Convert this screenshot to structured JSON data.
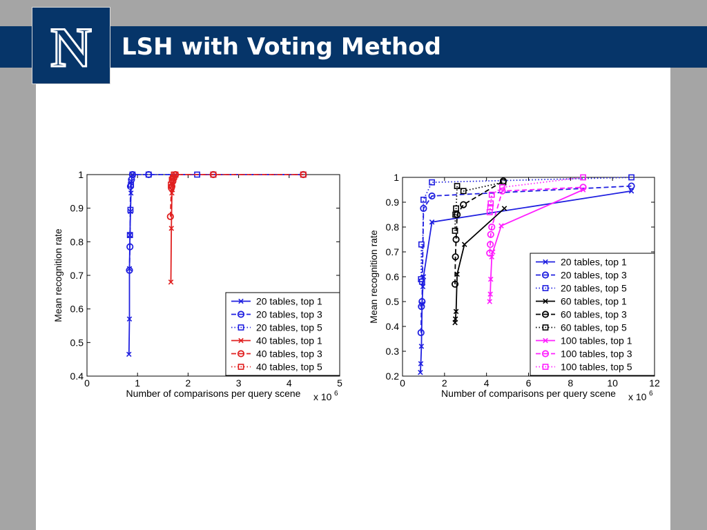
{
  "slide": {
    "title": "LSH with Voting Method",
    "logo_letter": "N",
    "colors": {
      "header": "#063569",
      "background": "#a5a5a5",
      "content": "#ffffff"
    }
  },
  "chart_data": [
    {
      "type": "line",
      "xlabel": "Number of comparisons per query scene",
      "ylabel": "Mean recognition rate",
      "x_multiplier": "x 10",
      "x_multiplier_exp": "6",
      "xlim": [
        0,
        5
      ],
      "ylim": [
        0.4,
        1
      ],
      "xticks": [
        0,
        1,
        2,
        3,
        4,
        5
      ],
      "xtick_labels": [
        "0",
        "1",
        "2",
        "3",
        "4",
        "5"
      ],
      "yticks": [
        0.4,
        0.5,
        0.6,
        0.7,
        0.8,
        0.9,
        1
      ],
      "ytick_labels": [
        "0.4",
        "0.5",
        "0.6",
        "0.7",
        "0.8",
        "0.9",
        "1"
      ],
      "grid": false,
      "legend_position": "bottom-right",
      "series": [
        {
          "name": "20 tables, top 1",
          "color": "#1f1fe0",
          "line": "solid",
          "marker": "x",
          "x": [
            0.83,
            0.84,
            0.84,
            0.85,
            0.86,
            0.87,
            0.88,
            0.9
          ],
          "y": [
            0.465,
            0.57,
            0.72,
            0.82,
            0.89,
            0.945,
            0.98,
            1.0
          ]
        },
        {
          "name": "20 tables, top 3",
          "color": "#1f1fe0",
          "line": "dashed",
          "marker": "o",
          "x": [
            0.84,
            0.85,
            0.86,
            0.88,
            0.9,
            1.22,
            2.5,
            4.28
          ],
          "y": [
            0.715,
            0.785,
            0.965,
            0.985,
            1.0,
            1.0,
            1.0,
            1.0
          ]
        },
        {
          "name": "20 tables, top 5",
          "color": "#1f1fe0",
          "line": "dotted",
          "marker": "s",
          "x": [
            0.85,
            0.86,
            0.87,
            0.9,
            1.22,
            2.18,
            2.5,
            4.28
          ],
          "y": [
            0.82,
            0.895,
            0.97,
            1.0,
            1.0,
            1.0,
            1.0,
            1.0
          ]
        },
        {
          "name": "40 tables, top 1",
          "color": "#e01f1f",
          "line": "solid",
          "marker": "x",
          "x": [
            1.66,
            1.67,
            1.68,
            1.69,
            1.7,
            1.72,
            1.75
          ],
          "y": [
            0.68,
            0.84,
            0.945,
            0.955,
            0.97,
            0.99,
            1.0
          ]
        },
        {
          "name": "40 tables, top 3",
          "color": "#e01f1f",
          "line": "dashed",
          "marker": "o",
          "x": [
            1.65,
            1.67,
            1.68,
            1.7,
            1.72,
            1.75,
            2.5,
            4.28
          ],
          "y": [
            0.875,
            0.96,
            0.965,
            0.98,
            0.99,
            1.0,
            1.0,
            1.0
          ]
        },
        {
          "name": "40 tables, top 5",
          "color": "#e01f1f",
          "line": "dotted",
          "marker": "s",
          "x": [
            1.66,
            1.68,
            1.7,
            1.72,
            1.75,
            2.5,
            4.28
          ],
          "y": [
            0.97,
            0.985,
            0.99,
            1.0,
            1.0,
            1.0,
            1.0
          ]
        }
      ]
    },
    {
      "type": "line",
      "xlabel": "Number of comparisons per query scene",
      "ylabel": "Mean recognition rate",
      "x_multiplier": "x 10",
      "x_multiplier_exp": "6",
      "xlim": [
        0,
        12
      ],
      "ylim": [
        0.2,
        1
      ],
      "xticks": [
        0,
        2,
        4,
        6,
        8,
        10,
        12
      ],
      "xtick_labels": [
        "0",
        "2",
        "4",
        "6",
        "8",
        "10",
        "12"
      ],
      "yticks": [
        0.2,
        0.3,
        0.4,
        0.5,
        0.6,
        0.7,
        0.8,
        0.9,
        1
      ],
      "ytick_labels": [
        "0.2",
        "0.3",
        "0.4",
        "0.5",
        "0.6",
        "0.7",
        "0.8",
        "0.9",
        "1"
      ],
      "grid": false,
      "legend_position": "bottom-right",
      "series": [
        {
          "name": "20 tables, top 1",
          "color": "#1f1fe0",
          "line": "solid",
          "marker": "x",
          "x": [
            0.85,
            0.87,
            0.9,
            0.93,
            0.97,
            1.0,
            1.4,
            10.9
          ],
          "y": [
            0.215,
            0.25,
            0.32,
            0.49,
            0.56,
            0.6,
            0.82,
            0.945
          ]
        },
        {
          "name": "20 tables, top 3",
          "color": "#1f1fe0",
          "line": "dashed",
          "marker": "o",
          "x": [
            0.88,
            0.9,
            0.93,
            1.0,
            1.4,
            10.9
          ],
          "y": [
            0.375,
            0.48,
            0.5,
            0.875,
            0.925,
            0.965
          ]
        },
        {
          "name": "20 tables, top 5",
          "color": "#1f1fe0",
          "line": "dotted",
          "marker": "s",
          "x": [
            0.88,
            0.9,
            0.93,
            1.0,
            1.4,
            10.9
          ],
          "y": [
            0.59,
            0.73,
            0.58,
            0.91,
            0.98,
            1.0
          ]
        },
        {
          "name": "60 tables, top 1",
          "color": "#000000",
          "line": "solid",
          "marker": "x",
          "x": [
            2.5,
            2.52,
            2.55,
            2.6,
            2.95,
            4.85
          ],
          "y": [
            0.415,
            0.43,
            0.46,
            0.61,
            0.73,
            0.875
          ]
        },
        {
          "name": "60 tables, top 3",
          "color": "#000000",
          "line": "dashed",
          "marker": "o",
          "x": [
            2.5,
            2.52,
            2.55,
            2.6,
            2.9,
            4.8
          ],
          "y": [
            0.57,
            0.68,
            0.75,
            0.85,
            0.89,
            0.985
          ]
        },
        {
          "name": "60 tables, top 5",
          "color": "#000000",
          "line": "dotted",
          "marker": "s",
          "x": [
            2.5,
            2.52,
            2.55,
            2.6,
            2.9,
            4.8
          ],
          "y": [
            0.785,
            0.85,
            0.875,
            0.965,
            0.945,
            0.98
          ]
        },
        {
          "name": "100 tables, top 1",
          "color": "#ff1fff",
          "line": "solid",
          "marker": "x",
          "x": [
            4.15,
            4.18,
            4.2,
            4.25,
            4.3,
            4.7,
            8.6
          ],
          "y": [
            0.5,
            0.53,
            0.59,
            0.68,
            0.7,
            0.805,
            0.95
          ]
        },
        {
          "name": "100 tables, top 3",
          "color": "#ff1fff",
          "line": "dashed",
          "marker": "o",
          "x": [
            4.15,
            4.18,
            4.2,
            4.25,
            4.75,
            8.6
          ],
          "y": [
            0.695,
            0.73,
            0.77,
            0.8,
            0.945,
            0.96
          ]
        },
        {
          "name": "100 tables, top 5",
          "color": "#ff1fff",
          "line": "dotted",
          "marker": "s",
          "x": [
            4.15,
            4.18,
            4.2,
            4.25,
            4.75,
            8.6
          ],
          "y": [
            0.86,
            0.88,
            0.895,
            0.93,
            0.96,
            1.0
          ]
        }
      ]
    }
  ]
}
